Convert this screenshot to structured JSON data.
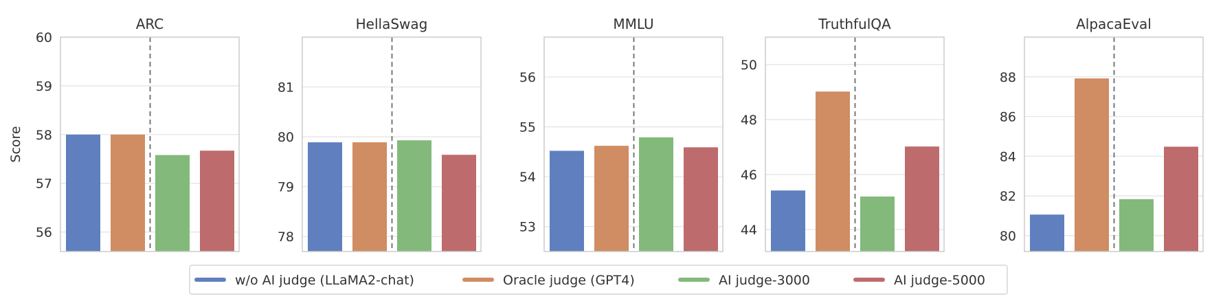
{
  "chart_data": {
    "type": "bar",
    "ylabel": "Score",
    "series": [
      {
        "name": "w/o AI judge (LLaMA2-chat)",
        "color": "#5f7fbf"
      },
      {
        "name": "Oracle judge (GPT4)",
        "color": "#d08c62"
      },
      {
        "name": "AI judge-3000",
        "color": "#83b97a"
      },
      {
        "name": "AI judge-5000",
        "color": "#bd6b6c"
      }
    ],
    "panels": [
      {
        "title": "ARC",
        "ylim": [
          55.6,
          60.0
        ],
        "ticks": [
          56,
          57,
          58,
          59,
          60
        ],
        "values": [
          58.0,
          58.0,
          57.58,
          57.67
        ],
        "divider_after": 2
      },
      {
        "title": "HellaSwag",
        "ylim": [
          77.7,
          82.0
        ],
        "ticks": [
          78,
          79,
          80,
          81
        ],
        "values": [
          79.89,
          79.89,
          79.93,
          79.64
        ],
        "divider_after": 2
      },
      {
        "title": "MMLU",
        "ylim": [
          52.5,
          56.8
        ],
        "ticks": [
          53,
          54,
          55,
          56
        ],
        "values": [
          54.52,
          54.62,
          54.79,
          54.59
        ],
        "divider_after": 2
      },
      {
        "title": "TruthfulQA",
        "ylim": [
          43.2,
          51.0
        ],
        "ticks": [
          44,
          46,
          48,
          50
        ],
        "values": [
          45.42,
          49.02,
          45.2,
          47.02
        ],
        "divider_after": 2
      },
      {
        "title": "AlpacaEval",
        "ylim": [
          79.2,
          90.0
        ],
        "ticks": [
          80,
          82,
          84,
          86,
          88
        ],
        "values": [
          81.06,
          87.92,
          81.84,
          84.48
        ],
        "divider_after": 2
      }
    ],
    "grid": true,
    "legend_position": "bottom-center"
  }
}
